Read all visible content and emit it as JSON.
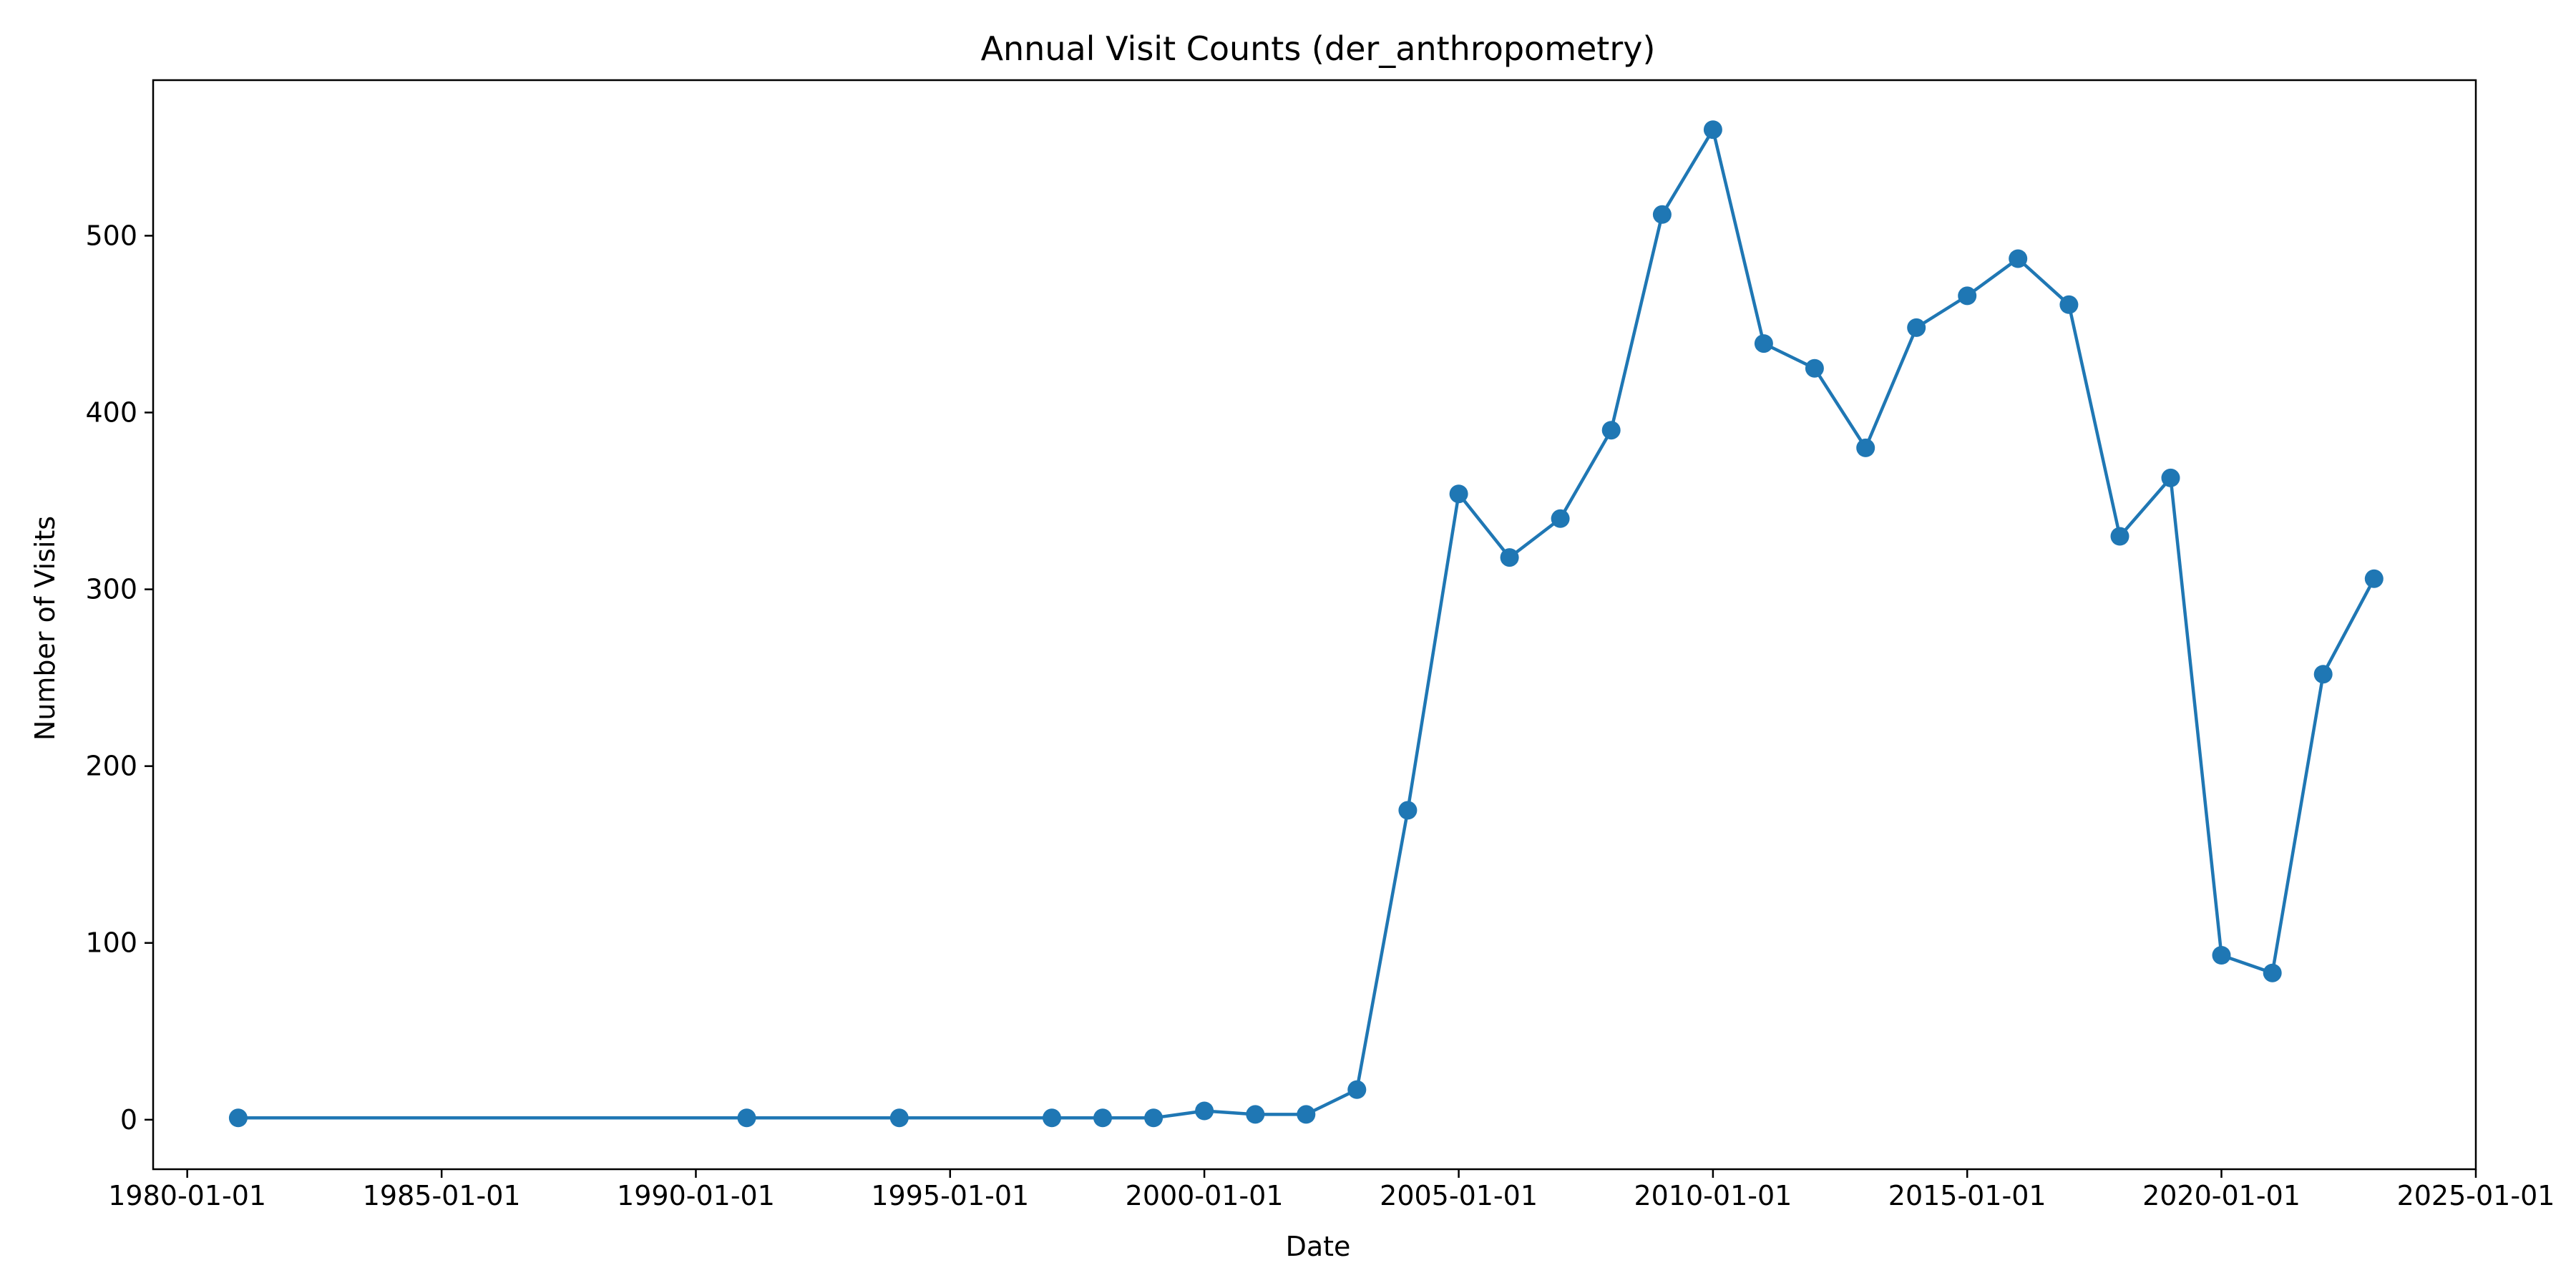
{
  "chart_data": {
    "type": "line",
    "title": "Annual Visit Counts (der_anthropometry)",
    "xlabel": "Date",
    "ylabel": "Number of Visits",
    "x_axis_type": "date",
    "xlim": [
      "1979-05-01",
      "2025-01-01"
    ],
    "ylim": [
      -28,
      588
    ],
    "x_ticks": [
      "1980-01-01",
      "1985-01-01",
      "1990-01-01",
      "1995-01-01",
      "2000-01-01",
      "2005-01-01",
      "2010-01-01",
      "2015-01-01",
      "2020-01-01",
      "2025-01-01"
    ],
    "y_ticks": [
      0,
      100,
      200,
      300,
      400,
      500
    ],
    "grid": false,
    "legend": "none",
    "marker": "circle",
    "color": "#1f77b4",
    "series": [
      {
        "x": [
          "1981-01-01",
          "1991-01-01",
          "1994-01-01",
          "1997-01-01",
          "1998-01-01",
          "1999-01-01",
          "2000-01-01",
          "2001-01-01",
          "2002-01-01",
          "2003-01-01",
          "2004-01-01",
          "2005-01-01",
          "2006-01-01",
          "2007-01-01",
          "2008-01-01",
          "2009-01-01",
          "2010-01-01",
          "2011-01-01",
          "2012-01-01",
          "2013-01-01",
          "2014-01-01",
          "2015-01-01",
          "2016-01-01",
          "2017-01-01",
          "2018-01-01",
          "2019-01-01",
          "2020-01-01",
          "2021-01-01",
          "2022-01-01",
          "2023-01-01"
        ],
        "values": [
          1,
          1,
          1,
          1,
          1,
          1,
          5,
          3,
          3,
          17,
          175,
          354,
          318,
          340,
          390,
          512,
          560,
          439,
          425,
          380,
          448,
          466,
          487,
          461,
          330,
          363,
          93,
          83,
          252,
          306
        ]
      }
    ]
  }
}
